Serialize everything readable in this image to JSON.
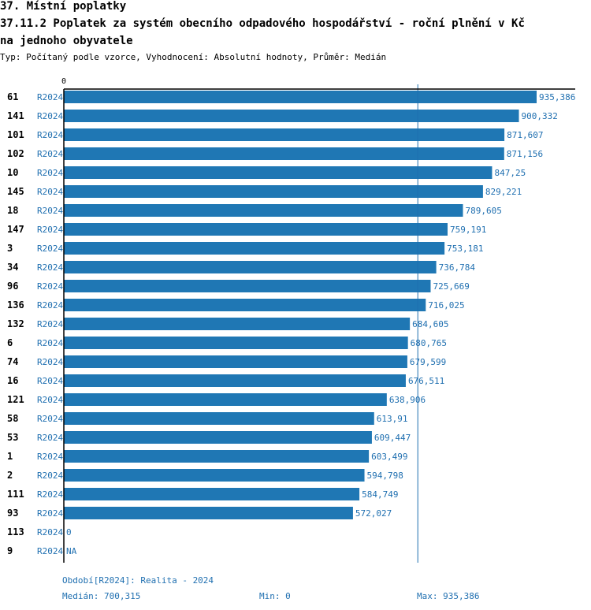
{
  "header": {
    "line1": "37. Místní poplatky",
    "line2": "37.11.2 Poplatek za systém obecního odpadového hospodářství  - roční plnění v Kč",
    "line3": "na jednoho obyvatele",
    "subtitle": "Typ: Počítaný podle vzorce, Vyhodnocení: Absolutní hodnoty, Průměr: Medián"
  },
  "chart_data": {
    "type": "bar",
    "orientation": "horizontal",
    "axis_zero_label": "0",
    "xlim": [
      0,
      935.386
    ],
    "median": 700.315,
    "series_name": "R2024",
    "rows": [
      {
        "id": "61",
        "period": "R2024",
        "value": 935.386,
        "label": "935,386"
      },
      {
        "id": "141",
        "period": "R2024",
        "value": 900.332,
        "label": "900,332"
      },
      {
        "id": "101",
        "period": "R2024",
        "value": 871.607,
        "label": "871,607"
      },
      {
        "id": "102",
        "period": "R2024",
        "value": 871.156,
        "label": "871,156"
      },
      {
        "id": "10",
        "period": "R2024",
        "value": 847.25,
        "label": "847,25"
      },
      {
        "id": "145",
        "period": "R2024",
        "value": 829.221,
        "label": "829,221"
      },
      {
        "id": "18",
        "period": "R2024",
        "value": 789.605,
        "label": "789,605"
      },
      {
        "id": "147",
        "period": "R2024",
        "value": 759.191,
        "label": "759,191"
      },
      {
        "id": "3",
        "period": "R2024",
        "value": 753.181,
        "label": "753,181"
      },
      {
        "id": "34",
        "period": "R2024",
        "value": 736.784,
        "label": "736,784"
      },
      {
        "id": "96",
        "period": "R2024",
        "value": 725.669,
        "label": "725,669"
      },
      {
        "id": "136",
        "period": "R2024",
        "value": 716.025,
        "label": "716,025"
      },
      {
        "id": "132",
        "period": "R2024",
        "value": 684.605,
        "label": "684,605"
      },
      {
        "id": "6",
        "period": "R2024",
        "value": 680.765,
        "label": "680,765"
      },
      {
        "id": "74",
        "period": "R2024",
        "value": 679.599,
        "label": "679,599"
      },
      {
        "id": "16",
        "period": "R2024",
        "value": 676.511,
        "label": "676,511"
      },
      {
        "id": "121",
        "period": "R2024",
        "value": 638.906,
        "label": "638,906"
      },
      {
        "id": "58",
        "period": "R2024",
        "value": 613.91,
        "label": "613,91"
      },
      {
        "id": "53",
        "period": "R2024",
        "value": 609.447,
        "label": "609,447"
      },
      {
        "id": "1",
        "period": "R2024",
        "value": 603.499,
        "label": "603,499"
      },
      {
        "id": "2",
        "period": "R2024",
        "value": 594.798,
        "label": "594,798"
      },
      {
        "id": "111",
        "period": "R2024",
        "value": 584.749,
        "label": "584,749"
      },
      {
        "id": "93",
        "period": "R2024",
        "value": 572.027,
        "label": "572,027"
      },
      {
        "id": "113",
        "period": "R2024",
        "value": 0,
        "label": "0"
      },
      {
        "id": "9",
        "period": "R2024",
        "value": null,
        "label": "NA"
      }
    ],
    "colors": {
      "bar": "#1f77b4",
      "label": "#1f6fb0",
      "axis": "#000000"
    }
  },
  "footer": {
    "period_note": "Období[R2024]: Realita - 2024",
    "median": "Medián: 700,315",
    "min": "Min: 0",
    "max": "Max: 935,386"
  }
}
